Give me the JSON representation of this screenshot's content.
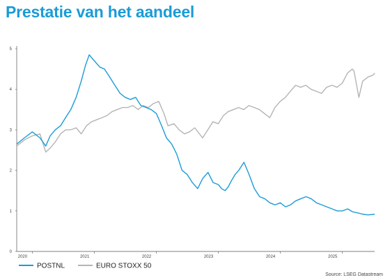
{
  "title": "Prestatie van het aandeel",
  "source": "Source: LSEG Datastream",
  "colors": {
    "title": "#1a9bd7",
    "postnl": "#1a9bd7",
    "eurostoxx": "#b4b4b4",
    "axis": "#555555"
  },
  "chart_data": {
    "type": "line",
    "title": "Prestatie van het aandeel",
    "xlabel": "",
    "ylabel": "",
    "ylim": [
      0,
      5
    ],
    "y_ticks": [
      "0",
      "1",
      "2",
      "3",
      "4",
      "5"
    ],
    "x_ticks": [
      "2020",
      "2021",
      "2022",
      "2023",
      "2024",
      "2025"
    ],
    "xlim": [
      "2019-10-01",
      "2025-07-10"
    ],
    "grid": false,
    "legend_position": "bottom-left",
    "series": [
      {
        "name": "POSTNL",
        "color": "#1a9bd7",
        "x": [
          "2019-10-01",
          "2019-11-15",
          "2020-01-01",
          "2020-02-15",
          "2020-03-20",
          "2020-04-15",
          "2020-05-15",
          "2020-06-15",
          "2020-07-15",
          "2020-08-15",
          "2020-09-15",
          "2020-10-15",
          "2020-11-10",
          "2020-12-01",
          "2021-01-01",
          "2021-02-01",
          "2021-03-01",
          "2021-04-01",
          "2021-05-01",
          "2021-06-01",
          "2021-07-01",
          "2021-08-01",
          "2021-09-01",
          "2021-10-01",
          "2021-11-01",
          "2021-12-01",
          "2022-01-01",
          "2022-02-01",
          "2022-03-01",
          "2022-04-01",
          "2022-05-01",
          "2022-06-01",
          "2022-07-01",
          "2022-08-01",
          "2022-09-01",
          "2022-10-01",
          "2022-11-01",
          "2022-12-01",
          "2023-01-01",
          "2023-01-20",
          "2023-02-10",
          "2023-03-01",
          "2023-03-20",
          "2023-04-10",
          "2023-05-01",
          "2023-06-01",
          "2023-07-01",
          "2023-08-01",
          "2023-09-01",
          "2023-10-01",
          "2023-11-01",
          "2023-12-01",
          "2024-01-01",
          "2024-02-01",
          "2024-03-01",
          "2024-04-01",
          "2024-05-01",
          "2024-06-01",
          "2024-07-01",
          "2024-08-01",
          "2024-09-01",
          "2024-10-01",
          "2024-11-01",
          "2024-12-01",
          "2025-01-01",
          "2025-02-01",
          "2025-03-01",
          "2025-04-01",
          "2025-05-01",
          "2025-06-01",
          "2025-07-10"
        ],
        "values": [
          2.65,
          2.8,
          2.95,
          2.8,
          2.6,
          2.85,
          3.0,
          3.1,
          3.3,
          3.5,
          3.8,
          4.2,
          4.6,
          4.85,
          4.7,
          4.55,
          4.5,
          4.3,
          4.1,
          3.9,
          3.8,
          3.75,
          3.8,
          3.6,
          3.55,
          3.5,
          3.4,
          3.1,
          2.8,
          2.65,
          2.4,
          2.0,
          1.9,
          1.7,
          1.55,
          1.8,
          1.95,
          1.7,
          1.65,
          1.55,
          1.5,
          1.6,
          1.75,
          1.9,
          2.0,
          2.2,
          1.9,
          1.55,
          1.35,
          1.3,
          1.2,
          1.15,
          1.2,
          1.1,
          1.15,
          1.25,
          1.3,
          1.35,
          1.3,
          1.2,
          1.15,
          1.1,
          1.05,
          1.0,
          1.0,
          1.05,
          0.98,
          0.95,
          0.92,
          0.9,
          0.92
        ]
      },
      {
        "name": "EURO STOXX 50",
        "color": "#b4b4b4",
        "x": [
          "2019-10-01",
          "2019-11-15",
          "2020-01-01",
          "2020-02-15",
          "2020-03-20",
          "2020-04-15",
          "2020-05-15",
          "2020-06-15",
          "2020-07-15",
          "2020-08-15",
          "2020-09-15",
          "2020-10-15",
          "2020-11-15",
          "2020-12-15",
          "2021-01-15",
          "2021-02-15",
          "2021-03-15",
          "2021-04-15",
          "2021-05-15",
          "2021-06-15",
          "2021-07-15",
          "2021-08-15",
          "2021-09-15",
          "2021-10-15",
          "2021-11-15",
          "2021-12-15",
          "2022-01-15",
          "2022-02-15",
          "2022-03-10",
          "2022-04-15",
          "2022-05-15",
          "2022-06-15",
          "2022-07-15",
          "2022-08-15",
          "2022-09-30",
          "2022-10-31",
          "2022-11-30",
          "2022-12-31",
          "2023-01-31",
          "2023-02-28",
          "2023-03-31",
          "2023-04-30",
          "2023-05-31",
          "2023-06-30",
          "2023-07-31",
          "2023-08-31",
          "2023-09-30",
          "2023-10-31",
          "2023-11-30",
          "2023-12-31",
          "2024-01-31",
          "2024-02-29",
          "2024-03-31",
          "2024-04-30",
          "2024-05-31",
          "2024-06-30",
          "2024-07-31",
          "2024-08-31",
          "2024-09-30",
          "2024-10-31",
          "2024-11-30",
          "2024-12-31",
          "2025-01-31",
          "2025-02-28",
          "2025-03-10",
          "2025-04-08",
          "2025-04-30",
          "2025-05-31",
          "2025-06-30",
          "2025-07-10"
        ],
        "values": [
          2.6,
          2.75,
          2.85,
          2.9,
          2.45,
          2.55,
          2.7,
          2.9,
          3.0,
          3.0,
          3.05,
          2.9,
          3.1,
          3.2,
          3.25,
          3.3,
          3.35,
          3.45,
          3.5,
          3.55,
          3.55,
          3.6,
          3.5,
          3.6,
          3.55,
          3.65,
          3.7,
          3.4,
          3.1,
          3.15,
          3.0,
          2.9,
          2.95,
          3.05,
          2.8,
          3.0,
          3.2,
          3.15,
          3.35,
          3.45,
          3.5,
          3.55,
          3.5,
          3.6,
          3.55,
          3.5,
          3.4,
          3.3,
          3.55,
          3.7,
          3.8,
          3.95,
          4.1,
          4.05,
          4.1,
          4.0,
          3.95,
          3.9,
          4.05,
          4.1,
          4.05,
          4.15,
          4.4,
          4.5,
          4.45,
          3.8,
          4.2,
          4.3,
          4.35,
          4.4
        ]
      }
    ]
  }
}
